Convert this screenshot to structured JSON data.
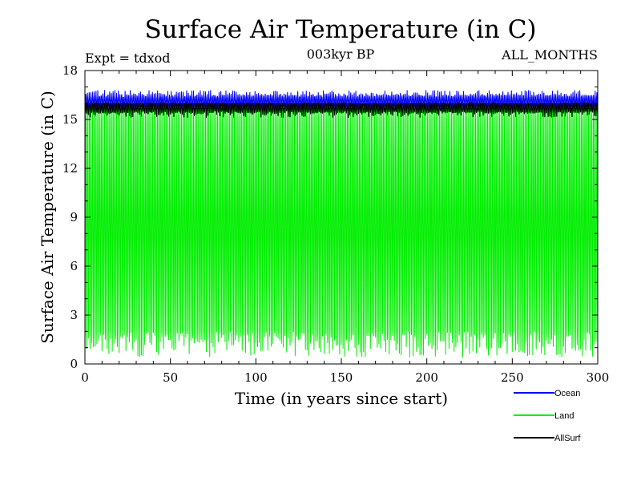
{
  "chart_data": {
    "type": "line",
    "title": "Surface Air Temperature (in C)",
    "subtitle": "003kyr BP",
    "left_label": "Expt = tdxod",
    "right_label": "ALL_MONTHS",
    "xlabel": "Time (in years since start)",
    "ylabel": "Surface Air Temperature (in C)",
    "xlim": [
      0,
      300
    ],
    "ylim": [
      0,
      18
    ],
    "xticks": [
      0,
      50,
      100,
      150,
      200,
      250,
      300
    ],
    "yticks": [
      0,
      3,
      6,
      9,
      12,
      15,
      18
    ],
    "grid": false,
    "legend_position": "bottom-right, below plot",
    "sampling": "monthly",
    "series": [
      {
        "name": "Ocean",
        "color": "#0000ff",
        "seasonal_min": 15.8,
        "seasonal_max": 16.5,
        "peak_range": [
          16.3,
          16.8
        ]
      },
      {
        "name": "Land",
        "color": "#00ee00",
        "seasonal_min": 1.0,
        "seasonal_max": 15.9,
        "trough_range": [
          0.4,
          2.0
        ]
      },
      {
        "name": "AllSurf",
        "color": "#000000",
        "seasonal_min": 15.4,
        "seasonal_max": 16.0,
        "trough_range": [
          15.1,
          15.7
        ]
      }
    ]
  }
}
